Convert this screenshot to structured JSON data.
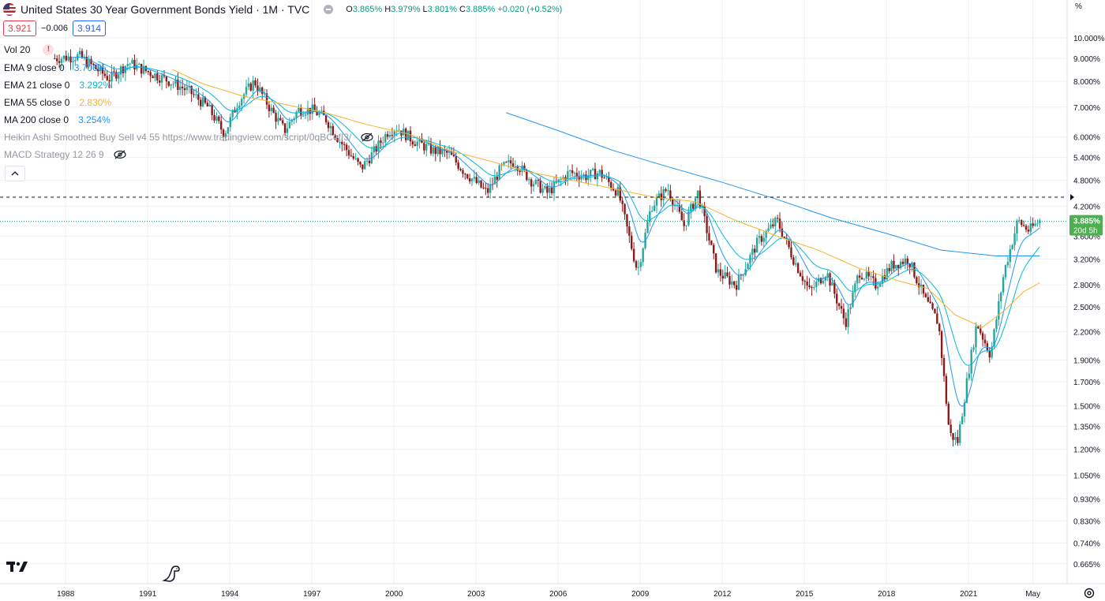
{
  "header": {
    "title": "United States 30 Year Government Bonds Yield · 1M · TVC",
    "ohlc": {
      "open_label": "O",
      "open": "3.865%",
      "high_label": "H",
      "high": "3.979%",
      "low_label": "L",
      "low": "3.801%",
      "close_label": "C",
      "close": "3.885%",
      "change": "+0.020 (+0.52%)"
    },
    "sell_price": "3.921",
    "spread": "−0.006",
    "buy_price": "3.914"
  },
  "indicators": [
    {
      "name": "Vol 20",
      "value": "",
      "color": "#131722",
      "warning": "!"
    },
    {
      "name": "EMA 9 close 0",
      "value": "3.706%",
      "color": "#2196f3"
    },
    {
      "name": "EMA 21 close 0",
      "value": "3.292%",
      "color": "#00bcd4"
    },
    {
      "name": "EMA 55 close 0",
      "value": "2.830%",
      "color": "#f7b32b"
    },
    {
      "name": "MA 200 close 0",
      "value": "3.254%",
      "color": "#2196f3"
    },
    {
      "name": "Heikin Ashi Smoothed Buy Sell v4 55 https://www.tradingview.com/script/0qBCefI3/",
      "value": "",
      "color": "#9598a1"
    },
    {
      "name": "MACD Strategy 12 26 9",
      "value": "",
      "color": "#9598a1"
    }
  ],
  "price_axis": {
    "unit": "%",
    "labels": [
      "10.000%",
      "9.000%",
      "8.000%",
      "7.000%",
      "6.000%",
      "5.400%",
      "4.800%",
      "4.200%",
      "3.600%",
      "3.200%",
      "2.800%",
      "2.500%",
      "2.200%",
      "1.900%",
      "1.700%",
      "1.500%",
      "1.350%",
      "1.200%",
      "1.050%",
      "0.930%",
      "0.830%",
      "0.740%",
      "0.665%"
    ],
    "last_price": "3.885%",
    "countdown": "20d 5h"
  },
  "time_axis": {
    "labels": [
      "1988",
      "1991",
      "1994",
      "1997",
      "2000",
      "2003",
      "2006",
      "2009",
      "2012",
      "2015",
      "2018",
      "2021",
      "May"
    ]
  },
  "colors": {
    "up": "#089981",
    "down": "#f23645",
    "candle_up": "#26a69a",
    "candle_down": "#8b1a1a",
    "ema9": "#2196f3",
    "ema21": "#00bcd4",
    "ema55": "#f7b32b",
    "ma200": "#2196f3",
    "last_price_bg": "#4caf50"
  },
  "chart_data": {
    "type": "candlestick",
    "title": "United States 30 Year Government Bonds Yield · 1M · TVC",
    "ylabel": "%",
    "y_scale": "log",
    "ylim": [
      0.62,
      11.3
    ],
    "xlim": [
      1985.6,
      2024.6
    ],
    "x_ticks": [
      "1988",
      "1991",
      "1994",
      "1997",
      "2000",
      "2003",
      "2006",
      "2009",
      "2012",
      "2015",
      "2018",
      "2021",
      "May"
    ],
    "series_anchors": {
      "yield_close": [
        [
          1987.6,
          9.0
        ],
        [
          1988.5,
          9.1
        ],
        [
          1989.6,
          8.1
        ],
        [
          1990.3,
          8.8
        ],
        [
          1991.0,
          8.4
        ],
        [
          1991.8,
          8.0
        ],
        [
          1992.5,
          7.6
        ],
        [
          1993.2,
          7.0
        ],
        [
          1993.8,
          6.1
        ],
        [
          1994.3,
          7.2
        ],
        [
          1994.9,
          8.0
        ],
        [
          1995.5,
          6.9
        ],
        [
          1996.0,
          6.2
        ],
        [
          1996.5,
          6.9
        ],
        [
          1997.0,
          6.9
        ],
        [
          1997.5,
          6.6
        ],
        [
          1998.0,
          5.9
        ],
        [
          1998.8,
          5.1
        ],
        [
          1999.3,
          5.6
        ],
        [
          1999.8,
          6.2
        ],
        [
          2000.1,
          6.3
        ],
        [
          2000.7,
          5.9
        ],
        [
          2001.4,
          5.6
        ],
        [
          2002.0,
          5.5
        ],
        [
          2002.6,
          5.0
        ],
        [
          2003.4,
          4.5
        ],
        [
          2003.9,
          5.1
        ],
        [
          2004.4,
          5.3
        ],
        [
          2005.0,
          4.8
        ],
        [
          2005.6,
          4.5
        ],
        [
          2006.4,
          5.0
        ],
        [
          2007.0,
          4.9
        ],
        [
          2007.5,
          5.0
        ],
        [
          2008.2,
          4.5
        ],
        [
          2008.9,
          3.0
        ],
        [
          2009.4,
          4.2
        ],
        [
          2010.0,
          4.6
        ],
        [
          2010.6,
          3.8
        ],
        [
          2011.1,
          4.5
        ],
        [
          2011.8,
          3.0
        ],
        [
          2012.5,
          2.8
        ],
        [
          2013.3,
          3.5
        ],
        [
          2014.0,
          3.9
        ],
        [
          2014.6,
          3.2
        ],
        [
          2015.2,
          2.7
        ],
        [
          2015.8,
          3.0
        ],
        [
          2016.5,
          2.3
        ],
        [
          2017.0,
          3.0
        ],
        [
          2017.6,
          2.8
        ],
        [
          2018.2,
          3.1
        ],
        [
          2018.8,
          3.2
        ],
        [
          2019.4,
          2.6
        ],
        [
          2019.9,
          2.3
        ],
        [
          2020.3,
          1.3
        ],
        [
          2020.6,
          1.25
        ],
        [
          2021.0,
          1.8
        ],
        [
          2021.3,
          2.3
        ],
        [
          2021.8,
          1.95
        ],
        [
          2022.3,
          3.0
        ],
        [
          2022.8,
          3.9
        ],
        [
          2023.2,
          3.7
        ],
        [
          2023.6,
          3.9
        ]
      ],
      "ema55": [
        [
          1991.9,
          8.5
        ],
        [
          1993.0,
          7.9
        ],
        [
          1994.5,
          7.4
        ],
        [
          1996.0,
          7.1
        ],
        [
          1997.5,
          6.8
        ],
        [
          1999.0,
          6.4
        ],
        [
          2000.5,
          6.1
        ],
        [
          2002.0,
          5.6
        ],
        [
          2003.5,
          5.3
        ],
        [
          2005.0,
          5.0
        ],
        [
          2006.5,
          4.8
        ],
        [
          2008.0,
          4.6
        ],
        [
          2009.5,
          4.4
        ],
        [
          2011.0,
          4.3
        ],
        [
          2012.5,
          3.9
        ],
        [
          2014.0,
          3.6
        ],
        [
          2015.5,
          3.35
        ],
        [
          2017.0,
          3.05
        ],
        [
          2018.5,
          2.85
        ],
        [
          2019.5,
          2.75
        ],
        [
          2020.5,
          2.4
        ],
        [
          2021.5,
          2.25
        ],
        [
          2022.3,
          2.45
        ],
        [
          2023.0,
          2.7
        ],
        [
          2023.6,
          2.83
        ]
      ],
      "ma200": [
        [
          2004.1,
          6.8
        ],
        [
          2006.0,
          6.2
        ],
        [
          2008.0,
          5.6
        ],
        [
          2010.0,
          5.15
        ],
        [
          2012.0,
          4.75
        ],
        [
          2014.0,
          4.35
        ],
        [
          2016.0,
          3.95
        ],
        [
          2018.0,
          3.65
        ],
        [
          2020.0,
          3.35
        ],
        [
          2022.0,
          3.25
        ],
        [
          2023.6,
          3.25
        ]
      ]
    },
    "last": {
      "open": 3.865,
      "high": 3.979,
      "low": 3.801,
      "close": 3.885,
      "change": "+0.020 (+0.52%)"
    },
    "dashed_high_line": 4.4
  }
}
